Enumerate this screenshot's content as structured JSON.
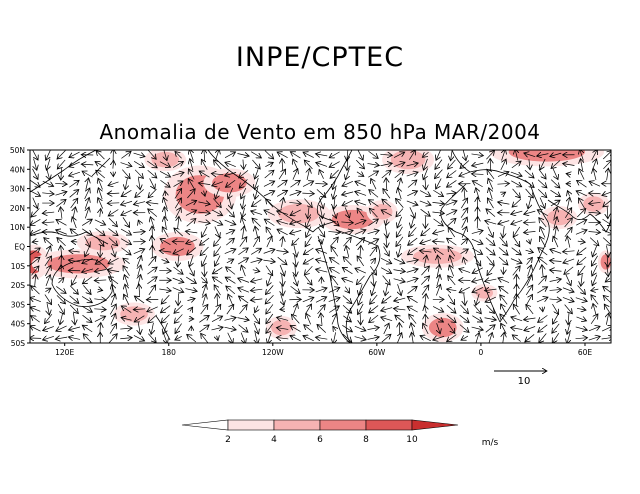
{
  "header": {
    "organization": "INPE/CPTEC"
  },
  "chart_data": {
    "type": "vector_field_map",
    "title": "Anomalia de Vento em 850 hPa MAR/2004",
    "variable": "850 hPa wind anomaly",
    "units": "m/s",
    "y_ticks": [
      "50N",
      "40N",
      "30N",
      "20N",
      "10N",
      "EQ",
      "10S",
      "20S",
      "30S",
      "40S",
      "50S"
    ],
    "y_range_deg": [
      -50,
      50
    ],
    "x_ticks": [
      "120E",
      "180",
      "120W",
      "60W",
      "0",
      "60E"
    ],
    "x_tick_lons": [
      120,
      180,
      240,
      300,
      360,
      420
    ],
    "x_range_lon": [
      100,
      435
    ],
    "reference_vector": {
      "label": "10",
      "magnitude": 10,
      "units": "m/s"
    },
    "colorbar": {
      "levels": [
        2,
        4,
        6,
        8,
        10
      ],
      "labels": [
        "2",
        "4",
        "6",
        "8",
        "10"
      ],
      "colors": [
        "#ffffff",
        "#fde4e4",
        "#f6b3b3",
        "#ec8585",
        "#dc5757",
        "#c92f2f"
      ],
      "units_label": "m/s"
    },
    "shaded_regions": [
      {
        "lon": 102,
        "lat": -8,
        "rlon": 6,
        "rlat": 6,
        "level": 8
      },
      {
        "lon": 128,
        "lat": -9,
        "rlon": 18,
        "rlat": 5,
        "level": 6
      },
      {
        "lon": 142,
        "lat": 2,
        "rlon": 10,
        "rlat": 4,
        "level": 4
      },
      {
        "lon": 198,
        "lat": 27,
        "rlon": 14,
        "rlat": 10,
        "level": 6
      },
      {
        "lon": 215,
        "lat": 33,
        "rlon": 10,
        "rlat": 5,
        "level": 6
      },
      {
        "lon": 185,
        "lat": 0,
        "rlon": 10,
        "rlat": 5,
        "level": 6
      },
      {
        "lon": 178,
        "lat": 45,
        "rlon": 8,
        "rlat": 4,
        "level": 4
      },
      {
        "lon": 255,
        "lat": 17,
        "rlon": 12,
        "rlat": 5,
        "level": 4
      },
      {
        "lon": 286,
        "lat": 14,
        "rlon": 12,
        "rlat": 5,
        "level": 6
      },
      {
        "lon": 303,
        "lat": 18,
        "rlon": 6,
        "rlat": 4,
        "level": 4
      },
      {
        "lon": 318,
        "lat": 45,
        "rlon": 10,
        "rlat": 5,
        "level": 4
      },
      {
        "lon": 335,
        "lat": -5,
        "rlon": 14,
        "rlat": 4,
        "level": 4
      },
      {
        "lon": 338,
        "lat": -42,
        "rlon": 8,
        "rlat": 5,
        "level": 6
      },
      {
        "lon": 362,
        "lat": -24,
        "rlon": 5,
        "rlat": 3,
        "level": 4
      },
      {
        "lon": 398,
        "lat": 49,
        "rlon": 22,
        "rlat": 5,
        "level": 6
      },
      {
        "lon": 405,
        "lat": 15,
        "rlon": 7,
        "rlat": 4,
        "level": 4
      },
      {
        "lon": 425,
        "lat": 22,
        "rlon": 6,
        "rlat": 4,
        "level": 4
      },
      {
        "lon": 432,
        "lat": -8,
        "rlon": 3,
        "rlat": 4,
        "level": 6
      },
      {
        "lon": 245,
        "lat": -42,
        "rlon": 6,
        "rlat": 4,
        "level": 4
      },
      {
        "lon": 160,
        "lat": -35,
        "rlon": 8,
        "rlat": 4,
        "level": 4
      }
    ],
    "grid_spacing_deg": {
      "lon": 7.5,
      "lat": 5
    },
    "vector_scale_m_s": 10
  }
}
